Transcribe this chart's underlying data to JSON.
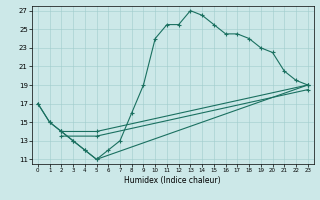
{
  "xlabel": "Humidex (Indice chaleur)",
  "bg_color": "#cce8e8",
  "line_color": "#1a7060",
  "xlim": [
    -0.5,
    23.5
  ],
  "ylim": [
    10.5,
    27.5
  ],
  "xticks": [
    0,
    1,
    2,
    3,
    4,
    5,
    6,
    7,
    8,
    9,
    10,
    11,
    12,
    13,
    14,
    15,
    16,
    17,
    18,
    19,
    20,
    21,
    22,
    23
  ],
  "yticks": [
    11,
    13,
    15,
    17,
    19,
    21,
    23,
    25,
    27
  ],
  "series": [
    {
      "x": [
        0,
        1,
        2,
        3,
        4,
        5,
        6,
        7,
        8,
        9,
        10,
        11,
        12,
        13,
        14,
        15,
        16,
        17,
        18,
        19,
        20,
        21,
        22,
        23
      ],
      "y": [
        17,
        15,
        14,
        13,
        12,
        11,
        12,
        13,
        16,
        19,
        24,
        25.5,
        25.5,
        27,
        26.5,
        25.5,
        24.5,
        24.5,
        24,
        23,
        22.5,
        20.5,
        19.5,
        19
      ]
    },
    {
      "x": [
        0,
        1,
        2,
        3,
        4,
        5,
        23
      ],
      "y": [
        17,
        15,
        14,
        13,
        12,
        11,
        19
      ]
    },
    {
      "x": [
        2,
        5,
        23
      ],
      "y": [
        14,
        14,
        19
      ]
    },
    {
      "x": [
        2,
        5,
        23
      ],
      "y": [
        13.5,
        13.5,
        18.5
      ]
    }
  ]
}
